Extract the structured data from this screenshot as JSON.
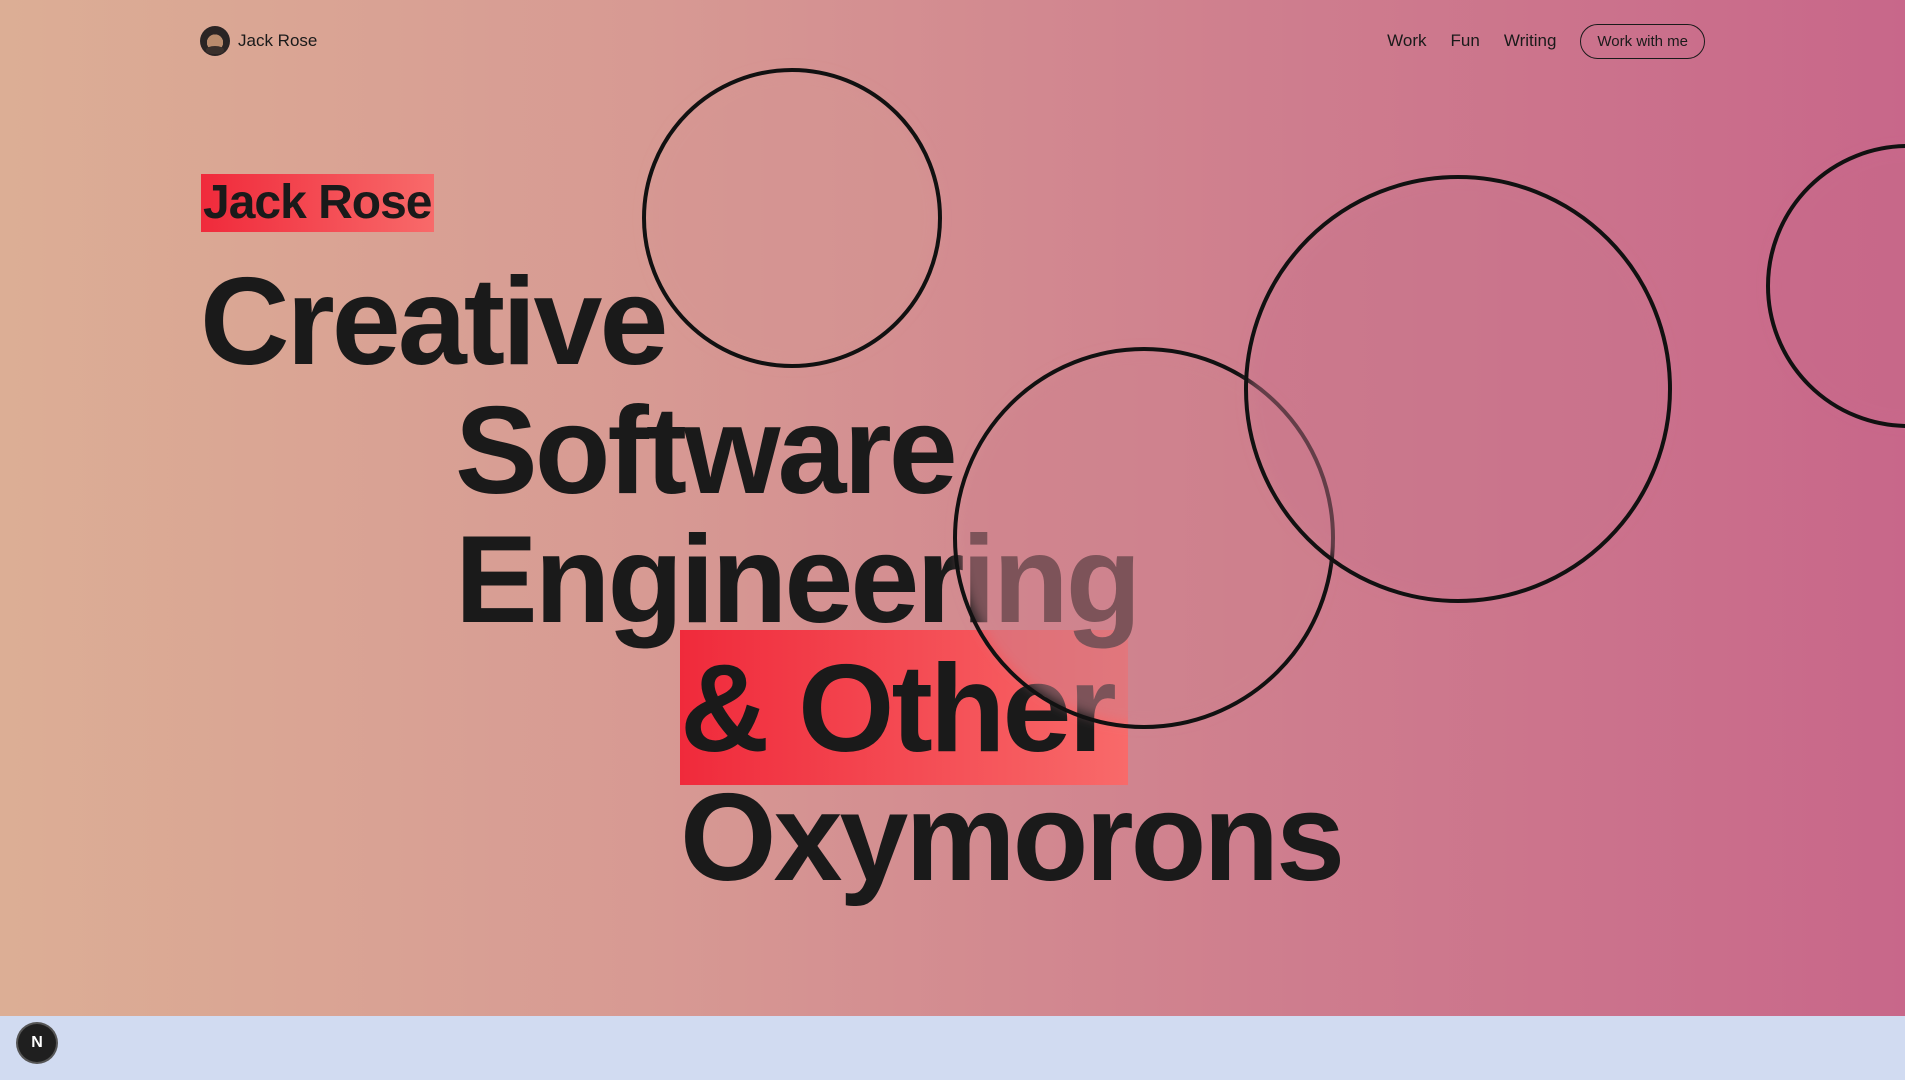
{
  "header": {
    "brand_name": "Jack Rose",
    "nav": [
      "Work",
      "Fun",
      "Writing"
    ],
    "cta_label": "Work with me"
  },
  "hero": {
    "name_tag": "Jack Rose",
    "lines": [
      "Creative",
      "Software",
      "Engineering",
      "& Other",
      "Oxymorons"
    ]
  },
  "colors": {
    "accent": "#f02a3b",
    "accent_light": "#f86a6a",
    "text": "#1a1a1a",
    "bg_left": "#dcae95",
    "bg_right": "#c8678a",
    "footer_strip": "#d1dbf1"
  },
  "dev_badge": {
    "label": "N",
    "icon": "nextjs-icon"
  }
}
